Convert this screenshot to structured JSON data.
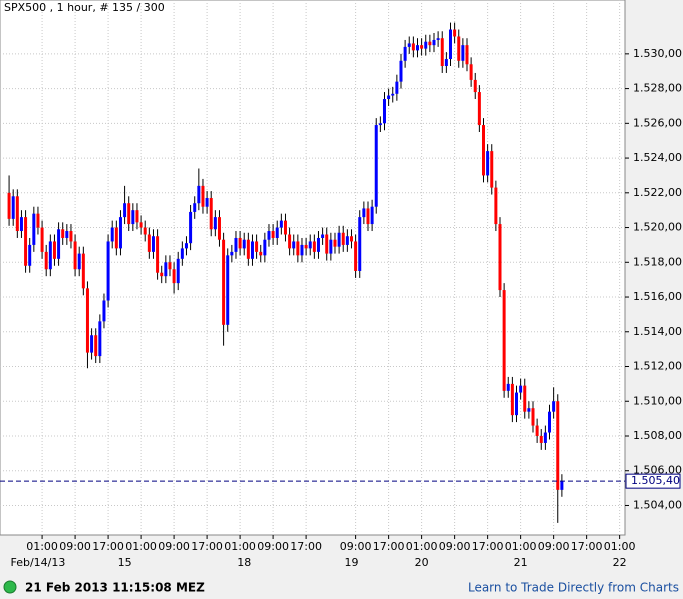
{
  "chart_data": {
    "type": "candlestick",
    "title": "SPX500 , 1 hour, # 135 / 300",
    "up_color": "#0000ff",
    "down_color": "#ff0000",
    "grid": true,
    "open": [
      1522.0,
      1520.5,
      1521.8,
      1519.8,
      1520.6,
      1517.8,
      1519.0,
      1520.8,
      1520.0,
      1518.6,
      1517.6,
      1519.2,
      1518.2,
      1519.9,
      1519.4,
      1519.8,
      1519.2,
      1517.6,
      1518.5,
      1516.5,
      1512.8,
      1513.8,
      1512.6,
      1514.6,
      1515.8,
      1519.2,
      1520.0,
      1518.8,
      1520.6,
      1521.4,
      1520.2,
      1521.0,
      1520.3,
      1520.0,
      1519.6,
      1518.6,
      1519.5,
      1517.4,
      1517.2,
      1518.0,
      1517.6,
      1516.8,
      1518.2,
      1518.8,
      1519.1,
      1520.9,
      1521.4,
      1522.4,
      1521.2,
      1521.7,
      1519.9,
      1520.6,
      1519.3,
      1514.4,
      1518.4,
      1518.6,
      1519.4,
      1518.8,
      1519.3,
      1518.2,
      1519.2,
      1518.6,
      1518.4,
      1519.3,
      1519.8,
      1519.4,
      1520.0,
      1520.4,
      1519.6,
      1518.8,
      1519.2,
      1518.4,
      1519.0,
      1518.8,
      1519.2,
      1518.6,
      1519.4,
      1519.6,
      1518.5,
      1519.3,
      1518.9,
      1519.7,
      1519.0,
      1519.5,
      1519.2,
      1517.5,
      1520.6,
      1521.1,
      1520.2,
      1521.2,
      1525.9,
      1526.0,
      1527.4,
      1527.6,
      1527.7,
      1528.4,
      1529.6,
      1530.4,
      1530.6,
      1530.2,
      1530.5,
      1530.3,
      1530.7,
      1530.5,
      1530.8,
      1530.9,
      1529.3,
      1529.7,
      1531.4,
      1531.0,
      1529.6,
      1530.5,
      1529.4,
      1528.5,
      1527.8,
      1525.9,
      1523.0,
      1524.4,
      1522.3,
      1520.2,
      1516.4,
      1510.6,
      1511.0,
      1509.2,
      1510.5,
      1510.9,
      1509.4,
      1509.6,
      1508.6,
      1508.0,
      1507.6,
      1508.2,
      1509.4,
      1510.0,
      1504.9
    ],
    "high": [
      1523.0,
      1522.2,
      1522.2,
      1521.0,
      1521.0,
      1519.4,
      1521.2,
      1521.2,
      1520.4,
      1519.0,
      1519.6,
      1519.6,
      1520.3,
      1520.3,
      1520.2,
      1520.2,
      1519.6,
      1518.9,
      1518.9,
      1516.9,
      1514.2,
      1514.2,
      1515.0,
      1516.2,
      1519.6,
      1520.4,
      1520.4,
      1521.0,
      1522.4,
      1521.8,
      1521.4,
      1521.4,
      1520.7,
      1520.4,
      1520.0,
      1519.9,
      1519.9,
      1517.8,
      1518.4,
      1518.4,
      1518.0,
      1518.6,
      1519.2,
      1519.5,
      1521.3,
      1521.8,
      1523.4,
      1522.8,
      1522.1,
      1522.1,
      1521.0,
      1521.0,
      1519.7,
      1518.8,
      1519.0,
      1519.8,
      1519.8,
      1519.7,
      1519.7,
      1519.6,
      1519.6,
      1519.0,
      1519.7,
      1520.2,
      1520.2,
      1520.4,
      1520.8,
      1520.8,
      1520.0,
      1519.6,
      1519.6,
      1519.4,
      1519.4,
      1519.6,
      1519.6,
      1519.8,
      1520.0,
      1520.0,
      1519.7,
      1519.7,
      1520.1,
      1520.1,
      1519.9,
      1519.9,
      1519.6,
      1521.0,
      1521.5,
      1521.5,
      1521.6,
      1526.3,
      1526.4,
      1527.8,
      1528.0,
      1528.1,
      1528.8,
      1530.0,
      1530.8,
      1531.0,
      1531.0,
      1530.9,
      1530.9,
      1531.1,
      1531.1,
      1531.2,
      1531.3,
      1531.3,
      1530.1,
      1531.8,
      1531.8,
      1531.4,
      1530.9,
      1530.9,
      1529.8,
      1528.9,
      1528.2,
      1526.3,
      1524.8,
      1524.8,
      1522.7,
      1520.6,
      1516.8,
      1511.4,
      1511.4,
      1510.9,
      1511.3,
      1511.3,
      1510.0,
      1510.0,
      1509.0,
      1508.4,
      1508.6,
      1509.8,
      1510.8,
      1510.4,
      1505.8
    ],
    "low": [
      1520.1,
      1520.1,
      1519.4,
      1519.4,
      1517.4,
      1517.4,
      1518.6,
      1519.6,
      1518.2,
      1517.2,
      1517.2,
      1517.8,
      1517.8,
      1519.0,
      1519.0,
      1518.8,
      1517.2,
      1517.2,
      1516.1,
      1511.9,
      1512.4,
      1512.2,
      1512.2,
      1514.2,
      1515.4,
      1518.8,
      1518.4,
      1518.4,
      1520.2,
      1519.8,
      1519.8,
      1519.9,
      1519.6,
      1519.2,
      1518.2,
      1518.2,
      1517.0,
      1516.8,
      1516.8,
      1517.2,
      1516.2,
      1516.4,
      1517.8,
      1518.4,
      1518.7,
      1520.5,
      1521.0,
      1520.8,
      1520.8,
      1519.5,
      1519.5,
      1518.9,
      1513.2,
      1514.0,
      1518.0,
      1518.2,
      1518.4,
      1518.4,
      1517.8,
      1517.8,
      1518.2,
      1518.0,
      1518.0,
      1518.9,
      1519.0,
      1519.0,
      1519.6,
      1519.2,
      1518.4,
      1518.4,
      1518.0,
      1518.0,
      1518.4,
      1518.4,
      1518.2,
      1518.2,
      1519.0,
      1518.1,
      1518.1,
      1518.5,
      1518.5,
      1518.6,
      1518.6,
      1518.8,
      1517.1,
      1517.1,
      1520.2,
      1519.8,
      1519.8,
      1520.8,
      1525.5,
      1525.6,
      1527.0,
      1527.2,
      1527.3,
      1528.0,
      1529.2,
      1530.0,
      1529.8,
      1529.8,
      1529.9,
      1529.9,
      1530.1,
      1530.1,
      1530.4,
      1528.9,
      1528.9,
      1529.3,
      1530.6,
      1529.2,
      1529.2,
      1529.0,
      1528.1,
      1527.4,
      1525.5,
      1522.6,
      1522.6,
      1521.9,
      1519.8,
      1516.0,
      1510.2,
      1510.2,
      1508.8,
      1508.8,
      1510.1,
      1509.0,
      1509.0,
      1508.2,
      1507.6,
      1507.2,
      1507.2,
      1507.8,
      1509.0,
      1503.0,
      1504.5
    ],
    "close": [
      1520.5,
      1521.8,
      1519.8,
      1520.6,
      1517.8,
      1519.0,
      1520.8,
      1520.0,
      1518.6,
      1517.6,
      1519.2,
      1518.2,
      1519.9,
      1519.4,
      1519.8,
      1519.2,
      1517.6,
      1518.5,
      1516.5,
      1512.8,
      1513.8,
      1512.6,
      1514.6,
      1515.8,
      1519.2,
      1520.0,
      1518.8,
      1520.6,
      1521.4,
      1520.2,
      1521.0,
      1520.3,
      1520.0,
      1519.6,
      1518.6,
      1519.5,
      1517.4,
      1517.2,
      1518.0,
      1517.6,
      1516.8,
      1518.2,
      1518.8,
      1519.1,
      1520.9,
      1521.4,
      1522.4,
      1521.2,
      1521.7,
      1519.9,
      1520.6,
      1519.3,
      1514.4,
      1518.4,
      1518.6,
      1519.4,
      1518.8,
      1519.3,
      1518.2,
      1519.2,
      1518.6,
      1518.4,
      1519.3,
      1519.8,
      1519.4,
      1520.0,
      1520.4,
      1519.6,
      1518.8,
      1519.2,
      1518.4,
      1519.0,
      1518.8,
      1519.2,
      1518.6,
      1519.4,
      1519.6,
      1518.5,
      1519.3,
      1518.9,
      1519.7,
      1519.0,
      1519.5,
      1519.2,
      1517.5,
      1520.6,
      1521.1,
      1520.2,
      1521.2,
      1525.9,
      1526.0,
      1527.4,
      1527.6,
      1527.7,
      1528.4,
      1529.6,
      1530.4,
      1530.6,
      1530.2,
      1530.5,
      1530.3,
      1530.7,
      1530.5,
      1530.8,
      1530.9,
      1529.3,
      1529.7,
      1531.4,
      1531.0,
      1529.6,
      1530.5,
      1529.4,
      1528.5,
      1527.8,
      1525.9,
      1523.0,
      1524.4,
      1522.3,
      1520.2,
      1516.4,
      1510.6,
      1511.0,
      1509.2,
      1510.5,
      1510.9,
      1509.4,
      1509.6,
      1508.6,
      1508.0,
      1507.6,
      1508.2,
      1509.4,
      1510.0,
      1504.9,
      1505.4
    ],
    "xlim": [
      -2.2,
      149.3
    ],
    "ylim": [
      1502.3,
      1533.1
    ],
    "yticks": [
      {
        "value": 1504,
        "label": "1.504,00"
      },
      {
        "value": 1506,
        "label": "1.506,00"
      },
      {
        "value": 1508,
        "label": "1.508,00"
      },
      {
        "value": 1510,
        "label": "1.510,00"
      },
      {
        "value": 1512,
        "label": "1.512,00"
      },
      {
        "value": 1514,
        "label": "1.514,00"
      },
      {
        "value": 1516,
        "label": "1.516,00"
      },
      {
        "value": 1518,
        "label": "1.518,00"
      },
      {
        "value": 1520,
        "label": "1.520,00"
      },
      {
        "value": 1522,
        "label": "1.522,00"
      },
      {
        "value": 1524,
        "label": "1.524,00"
      },
      {
        "value": 1526,
        "label": "1.526,00"
      },
      {
        "value": 1528,
        "label": "1.528,00"
      },
      {
        "value": 1530,
        "label": "1.530,00"
      }
    ],
    "xticks": [
      {
        "value": 8,
        "label": "01:00"
      },
      {
        "value": 16,
        "label": "09:00"
      },
      {
        "value": 24,
        "label": "17:00"
      },
      {
        "value": 32,
        "label": "01:00"
      },
      {
        "value": 40,
        "label": "09:00"
      },
      {
        "value": 48,
        "label": "17:00"
      },
      {
        "value": 56,
        "label": "01:00"
      },
      {
        "value": 64,
        "label": "09:00"
      },
      {
        "value": 72,
        "label": "17:00"
      },
      {
        "value": 84,
        "label": "09:00"
      },
      {
        "value": 92,
        "label": "17:00"
      },
      {
        "value": 100,
        "label": "01:00"
      },
      {
        "value": 108,
        "label": "09:00"
      },
      {
        "value": 116,
        "label": "17:00"
      },
      {
        "value": 124,
        "label": "01:00"
      },
      {
        "value": 132,
        "label": "09:00"
      },
      {
        "value": 140,
        "label": "17:00"
      },
      {
        "value": 148,
        "label": "01:00"
      }
    ],
    "date_ticks": [
      {
        "value": 7,
        "label": "Feb/14/13"
      },
      {
        "value": 28,
        "label": "15"
      },
      {
        "value": 57,
        "label": "18"
      },
      {
        "value": 83,
        "label": "19"
      },
      {
        "value": 100,
        "label": "20"
      },
      {
        "value": 124,
        "label": "21"
      },
      {
        "value": 148,
        "label": "22"
      }
    ],
    "current_price": {
      "value": 1505.4,
      "label": "1.505,40"
    }
  },
  "footer": {
    "timestamp": "21 Feb 2013 11:15:08 MEZ",
    "link": "Learn to Trade Directly from Charts"
  }
}
